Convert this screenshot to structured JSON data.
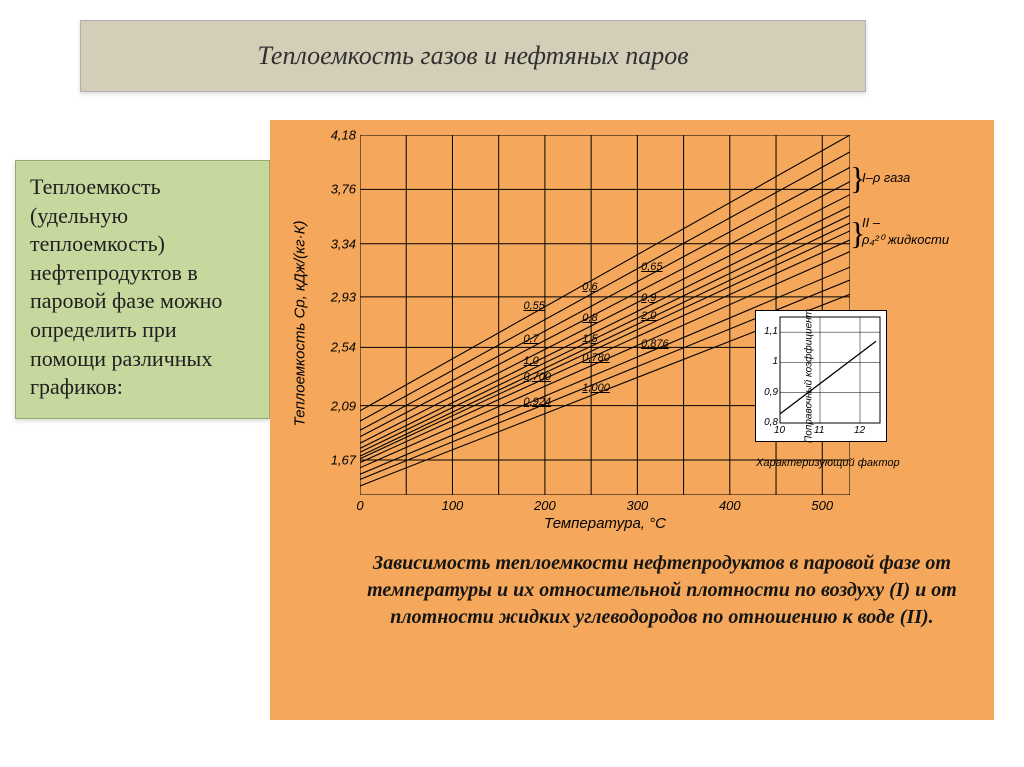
{
  "title": "Теплоемкость газов и нефтяных паров",
  "sidebar_text": "Теплоемкость (удельную теплоемкость) нефтепродуктов в паровой фазе можно определить при помощи различных графиков:",
  "caption": "Зависимость теплоемкости нефтепродуктов в паровой фазе от температуры и их относительной плотности по воздуху (I) и от плотности жидких углеводородов по отношению к воде (II).",
  "panel_bg_color": "#f5a85b",
  "title_bg_color": "#d4cdb7",
  "sidebar_bg_color": "#c6d89e",
  "main_chart": {
    "type": "line",
    "x_label": "Температура, °С",
    "y_label": "Теплоемкость Сp, кДж/(кг·К)",
    "xlim": [
      0,
      530
    ],
    "ylim": [
      1.4,
      4.18
    ],
    "x_ticks": [
      0,
      100,
      200,
      300,
      400,
      500
    ],
    "y_ticks": [
      1.67,
      2.09,
      2.54,
      2.93,
      3.34,
      3.76,
      4.18
    ],
    "x_grid": [
      0,
      50,
      100,
      150,
      200,
      250,
      300,
      350,
      400,
      450,
      500,
      530
    ],
    "grid_color": "#000000",
    "line_labels": [
      "0,55",
      "0,6",
      "0,65",
      "2,0",
      "0,7",
      "1,5",
      "0,8",
      "1,0",
      "0,9",
      "0,700",
      "0,780",
      "0,876",
      "0,924",
      "1,000"
    ],
    "series": [
      {
        "label": "0,55",
        "y0": 2.05,
        "y1": 4.18
      },
      {
        "label": "0,6",
        "y0": 1.97,
        "y1": 4.05
      },
      {
        "label": "0,65",
        "y0": 1.9,
        "y1": 3.93
      },
      {
        "label": "0,7",
        "y0": 1.85,
        "y1": 3.82
      },
      {
        "label": "0,8",
        "y0": 1.8,
        "y1": 3.72
      },
      {
        "label": "0,9",
        "y0": 1.76,
        "y1": 3.63
      },
      {
        "label": "1,0",
        "y0": 1.73,
        "y1": 3.56
      },
      {
        "label": "1,5",
        "y0": 1.7,
        "y1": 3.5
      },
      {
        "label": "2,0",
        "y0": 1.68,
        "y1": 3.44
      },
      {
        "label": "0,700",
        "y0": 1.65,
        "y1": 3.37
      },
      {
        "label": "0,780",
        "y0": 1.61,
        "y1": 3.28
      },
      {
        "label": "0,876",
        "y0": 1.56,
        "y1": 3.16
      },
      {
        "label": "0,924",
        "y0": 1.52,
        "y1": 3.06
      },
      {
        "label": "1,000",
        "y0": 1.47,
        "y1": 2.95
      }
    ],
    "right_annotations": {
      "group1": "I–ρ газа",
      "group2_a": "II –",
      "group2_b": "ρ₄²⁰ жидкости"
    }
  },
  "inset_chart": {
    "type": "line",
    "x_label": "Характеризующий фактор",
    "y_label": "Поправочный коэффициент",
    "xlim": [
      10,
      12.5
    ],
    "ylim": [
      0.8,
      1.15
    ],
    "x_ticks": [
      10,
      11,
      12
    ],
    "y_ticks": [
      0.8,
      0.9,
      1.0,
      1.1
    ],
    "series": [
      {
        "x0": 10,
        "y0": 0.83,
        "x1": 12.4,
        "y1": 1.07
      }
    ],
    "bg_color": "#ffffff"
  },
  "colors": {
    "line": "#000000",
    "text": "#202020"
  },
  "fonts": {
    "title_size_pt": 26,
    "side_size_pt": 22,
    "caption_size_pt": 20,
    "axis_size_pt": 13
  }
}
